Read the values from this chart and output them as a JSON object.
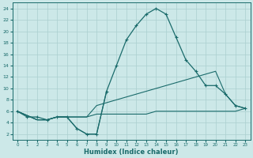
{
  "xlabel": "Humidex (Indice chaleur)",
  "background_color": "#cce8e8",
  "grid_color": "#aacfcf",
  "line_color": "#1a6b6b",
  "xlim": [
    -0.5,
    23.5
  ],
  "ylim": [
    1,
    25
  ],
  "yticks": [
    2,
    4,
    6,
    8,
    10,
    12,
    14,
    16,
    18,
    20,
    22,
    24
  ],
  "xticks": [
    0,
    1,
    2,
    3,
    4,
    5,
    6,
    7,
    8,
    9,
    10,
    11,
    12,
    13,
    14,
    15,
    16,
    17,
    18,
    19,
    20,
    21,
    22,
    23
  ],
  "lines": [
    {
      "x": [
        0,
        1,
        2,
        3,
        4,
        5,
        6,
        7,
        8,
        9,
        10,
        11,
        12,
        13,
        14,
        15,
        16,
        17,
        18,
        19,
        20,
        21,
        22,
        23
      ],
      "y": [
        6,
        5,
        5,
        4.5,
        5,
        5,
        3,
        2,
        2,
        9.5,
        14,
        18.5,
        21,
        23,
        24,
        23,
        19,
        15,
        13,
        10.5,
        10.5,
        9,
        7,
        6.5
      ],
      "marker": "+"
    },
    {
      "x": [
        0,
        2,
        3,
        4,
        5,
        6,
        7,
        8,
        9,
        10,
        11,
        12,
        13,
        14,
        15,
        16,
        17,
        18,
        19,
        20,
        21,
        22,
        23
      ],
      "y": [
        6,
        4.5,
        4.5,
        5,
        5,
        5,
        5,
        7,
        7.5,
        8,
        8.5,
        9,
        9.5,
        10,
        10.5,
        11,
        11.5,
        12,
        12.5,
        13,
        9,
        7,
        6.5
      ],
      "marker": null
    },
    {
      "x": [
        0,
        2,
        3,
        4,
        5,
        6,
        7,
        8,
        9,
        10,
        11,
        12,
        13,
        14,
        15,
        16,
        17,
        18,
        19,
        20,
        21,
        22,
        23
      ],
      "y": [
        6,
        4.5,
        4.5,
        5,
        5,
        5,
        5,
        5.5,
        5.5,
        5.5,
        5.5,
        5.5,
        5.5,
        6,
        6,
        6,
        6,
        6,
        6,
        6,
        6,
        6,
        6.5
      ],
      "marker": null
    },
    {
      "x": [
        0,
        2,
        3,
        4,
        5,
        6,
        7,
        8,
        9
      ],
      "y": [
        6,
        4.5,
        4.5,
        5,
        5,
        3,
        2,
        2,
        9.5
      ],
      "marker": null
    }
  ]
}
